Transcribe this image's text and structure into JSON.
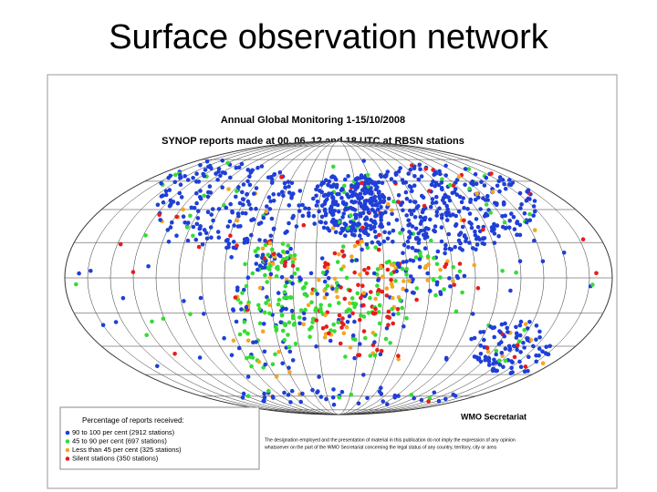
{
  "title": "Surface observation network",
  "figure": {
    "heading": "Annual Global Monitoring   1-15/10/2008",
    "subheading": "SYNOP reports made at 00, 06, 12 and 18 UTC at RBSN stations",
    "credit": "WMO Secretariat",
    "disclaimer": [
      "The designation employed and the presentation of material in this publication do not imply the expression of any opinion",
      "whatsoever on the part of the WMO Secretariat concerning the legal status of any country, territory, city or area"
    ],
    "legend": {
      "title": "Percentage of reports received:",
      "items": [
        {
          "label": "90 to 100 per cent (2912 stations)",
          "color": "#1f3fd6"
        },
        {
          "label": "45 to 90 per cent (697 stations)",
          "color": "#33dd33"
        },
        {
          "label": "Less than 45 per cent (325 stations)",
          "color": "#f5a623"
        },
        {
          "label": "Silent stations (350 stations)",
          "color": "#e81c1c"
        }
      ]
    }
  }
}
